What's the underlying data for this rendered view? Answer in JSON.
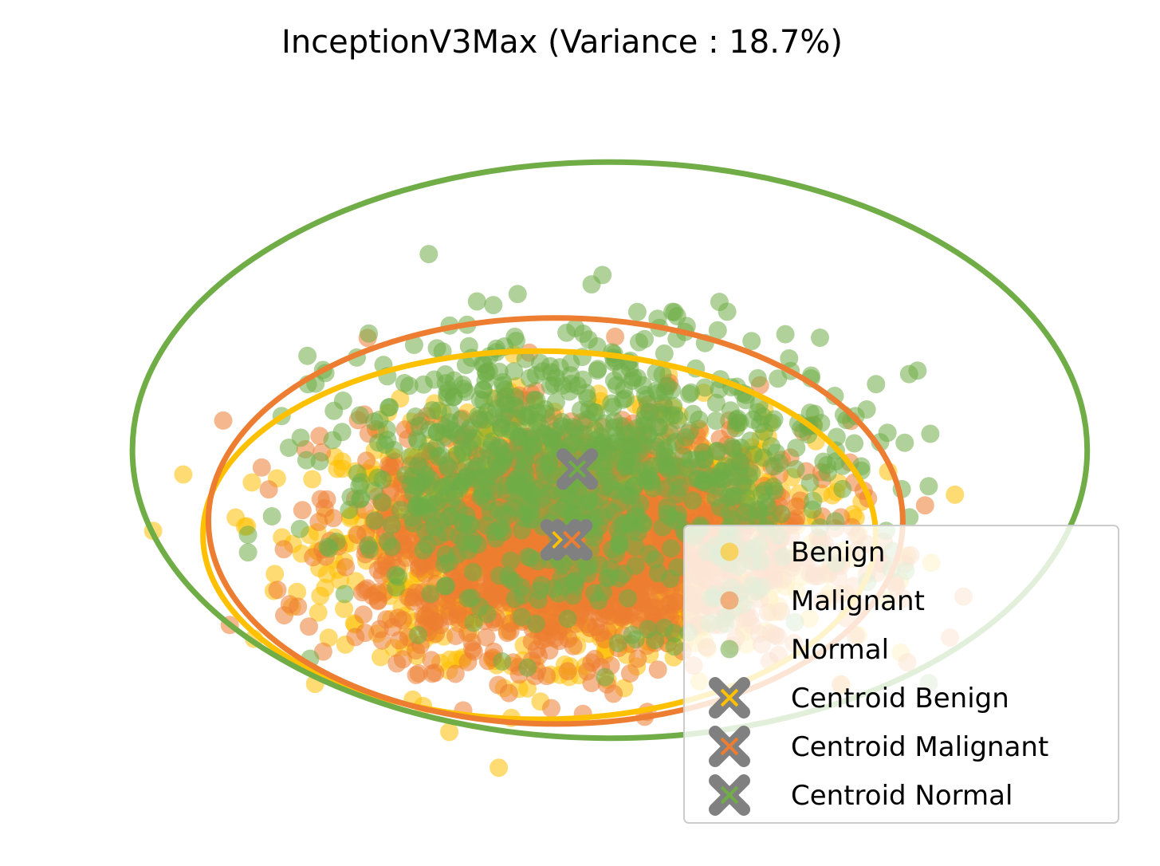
{
  "chart_data": {
    "type": "scatter",
    "title": "InceptionV3Max (Variance : 18.7%)",
    "xlabel": "",
    "ylabel": "",
    "axes_visible": false,
    "grid": false,
    "legend_placement": "lower-right",
    "colors": {
      "Benign": "#FFC000",
      "Malignant": "#ED7D31",
      "Normal": "#70AD47",
      "centroid_marker": "#808080"
    },
    "series": [
      {
        "name": "Benign",
        "marker": "circle",
        "color": "#FFC000",
        "count": 1400,
        "center": [
          -0.6,
          -0.9
        ],
        "spread": [
          2.0,
          1.2
        ]
      },
      {
        "name": "Malignant",
        "marker": "circle",
        "color": "#ED7D31",
        "count": 1800,
        "center": [
          -0.4,
          -0.9
        ],
        "spread": [
          1.9,
          1.2
        ]
      },
      {
        "name": "Normal",
        "marker": "circle",
        "color": "#70AD47",
        "count": 900,
        "center": [
          -0.3,
          0.6
        ],
        "spread": [
          2.2,
          1.5
        ]
      }
    ],
    "centroids": [
      {
        "name": "Centroid Benign",
        "x": -0.6,
        "y": -0.9,
        "color": "#FFC000"
      },
      {
        "name": "Centroid Malignant",
        "x": -0.4,
        "y": -0.9,
        "color": "#ED7D31"
      },
      {
        "name": "Centroid Normal",
        "x": -0.3,
        "y": 0.6,
        "color": "#70AD47"
      }
    ],
    "ellipses": [
      {
        "series": "Benign",
        "cx": -1.0,
        "cy": -0.8,
        "rx": 6.2,
        "ry": 3.9,
        "color": "#FFC000"
      },
      {
        "series": "Malignant",
        "cx": -0.7,
        "cy": -0.5,
        "rx": 6.4,
        "ry": 4.3,
        "color": "#ED7D31"
      },
      {
        "series": "Normal",
        "cx": 0.3,
        "cy": 1.0,
        "rx": 8.8,
        "ry": 6.1,
        "color": "#70AD47"
      }
    ],
    "xlim": [
      -10.5,
      10.0
    ],
    "ylim": [
      -7.2,
      8.0
    ],
    "legend": [
      "Benign",
      "Malignant",
      "Normal",
      "Centroid Benign",
      "Centroid Malignant",
      "Centroid Normal"
    ]
  }
}
